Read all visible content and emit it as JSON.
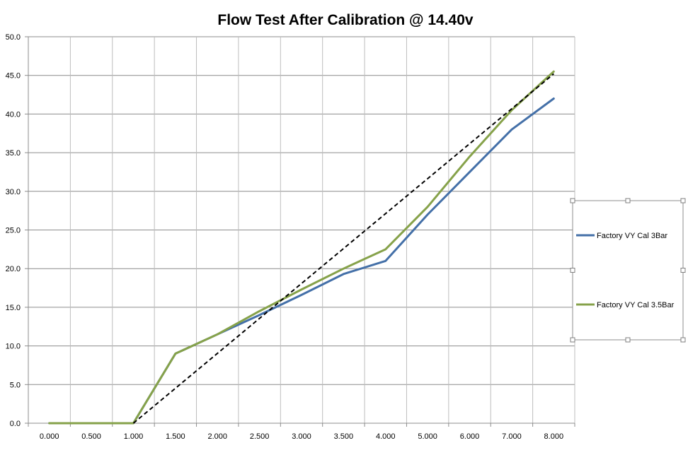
{
  "chart_data": {
    "type": "line",
    "title": "Flow Test After Calibration @ 14.40v",
    "xlabel": "",
    "ylabel": "",
    "categories": [
      "0.000",
      "0.500",
      "1.000",
      "1.500",
      "2.000",
      "2.500",
      "3.000",
      "3.500",
      "4.000",
      "5.000",
      "6.000",
      "7.000",
      "8.000"
    ],
    "ylim": [
      0,
      50
    ],
    "yticks": [
      "0.0",
      "5.0",
      "10.0",
      "15.0",
      "20.0",
      "25.0",
      "30.0",
      "35.0",
      "40.0",
      "45.0",
      "50.0"
    ],
    "grid": true,
    "legend_position": "right",
    "series": [
      {
        "name": "Factory VY Cal 3Bar",
        "color": "#4470A8",
        "values": [
          0,
          0,
          0,
          9.0,
          11.5,
          14.0,
          16.6,
          19.3,
          21.0,
          27.0,
          32.5,
          38.0,
          42.0
        ]
      },
      {
        "name": "Factory VY Cal 3.5Bar",
        "color": "#86A24A",
        "values": [
          0,
          0,
          0,
          9.0,
          11.5,
          14.5,
          17.3,
          20.0,
          22.5,
          28.0,
          34.5,
          40.5,
          45.5
        ]
      }
    ],
    "trendline": {
      "style": "dashed",
      "color": "#000000",
      "from_category": 2,
      "to_category": 12,
      "from_value": 0,
      "to_value": 45.2
    }
  }
}
